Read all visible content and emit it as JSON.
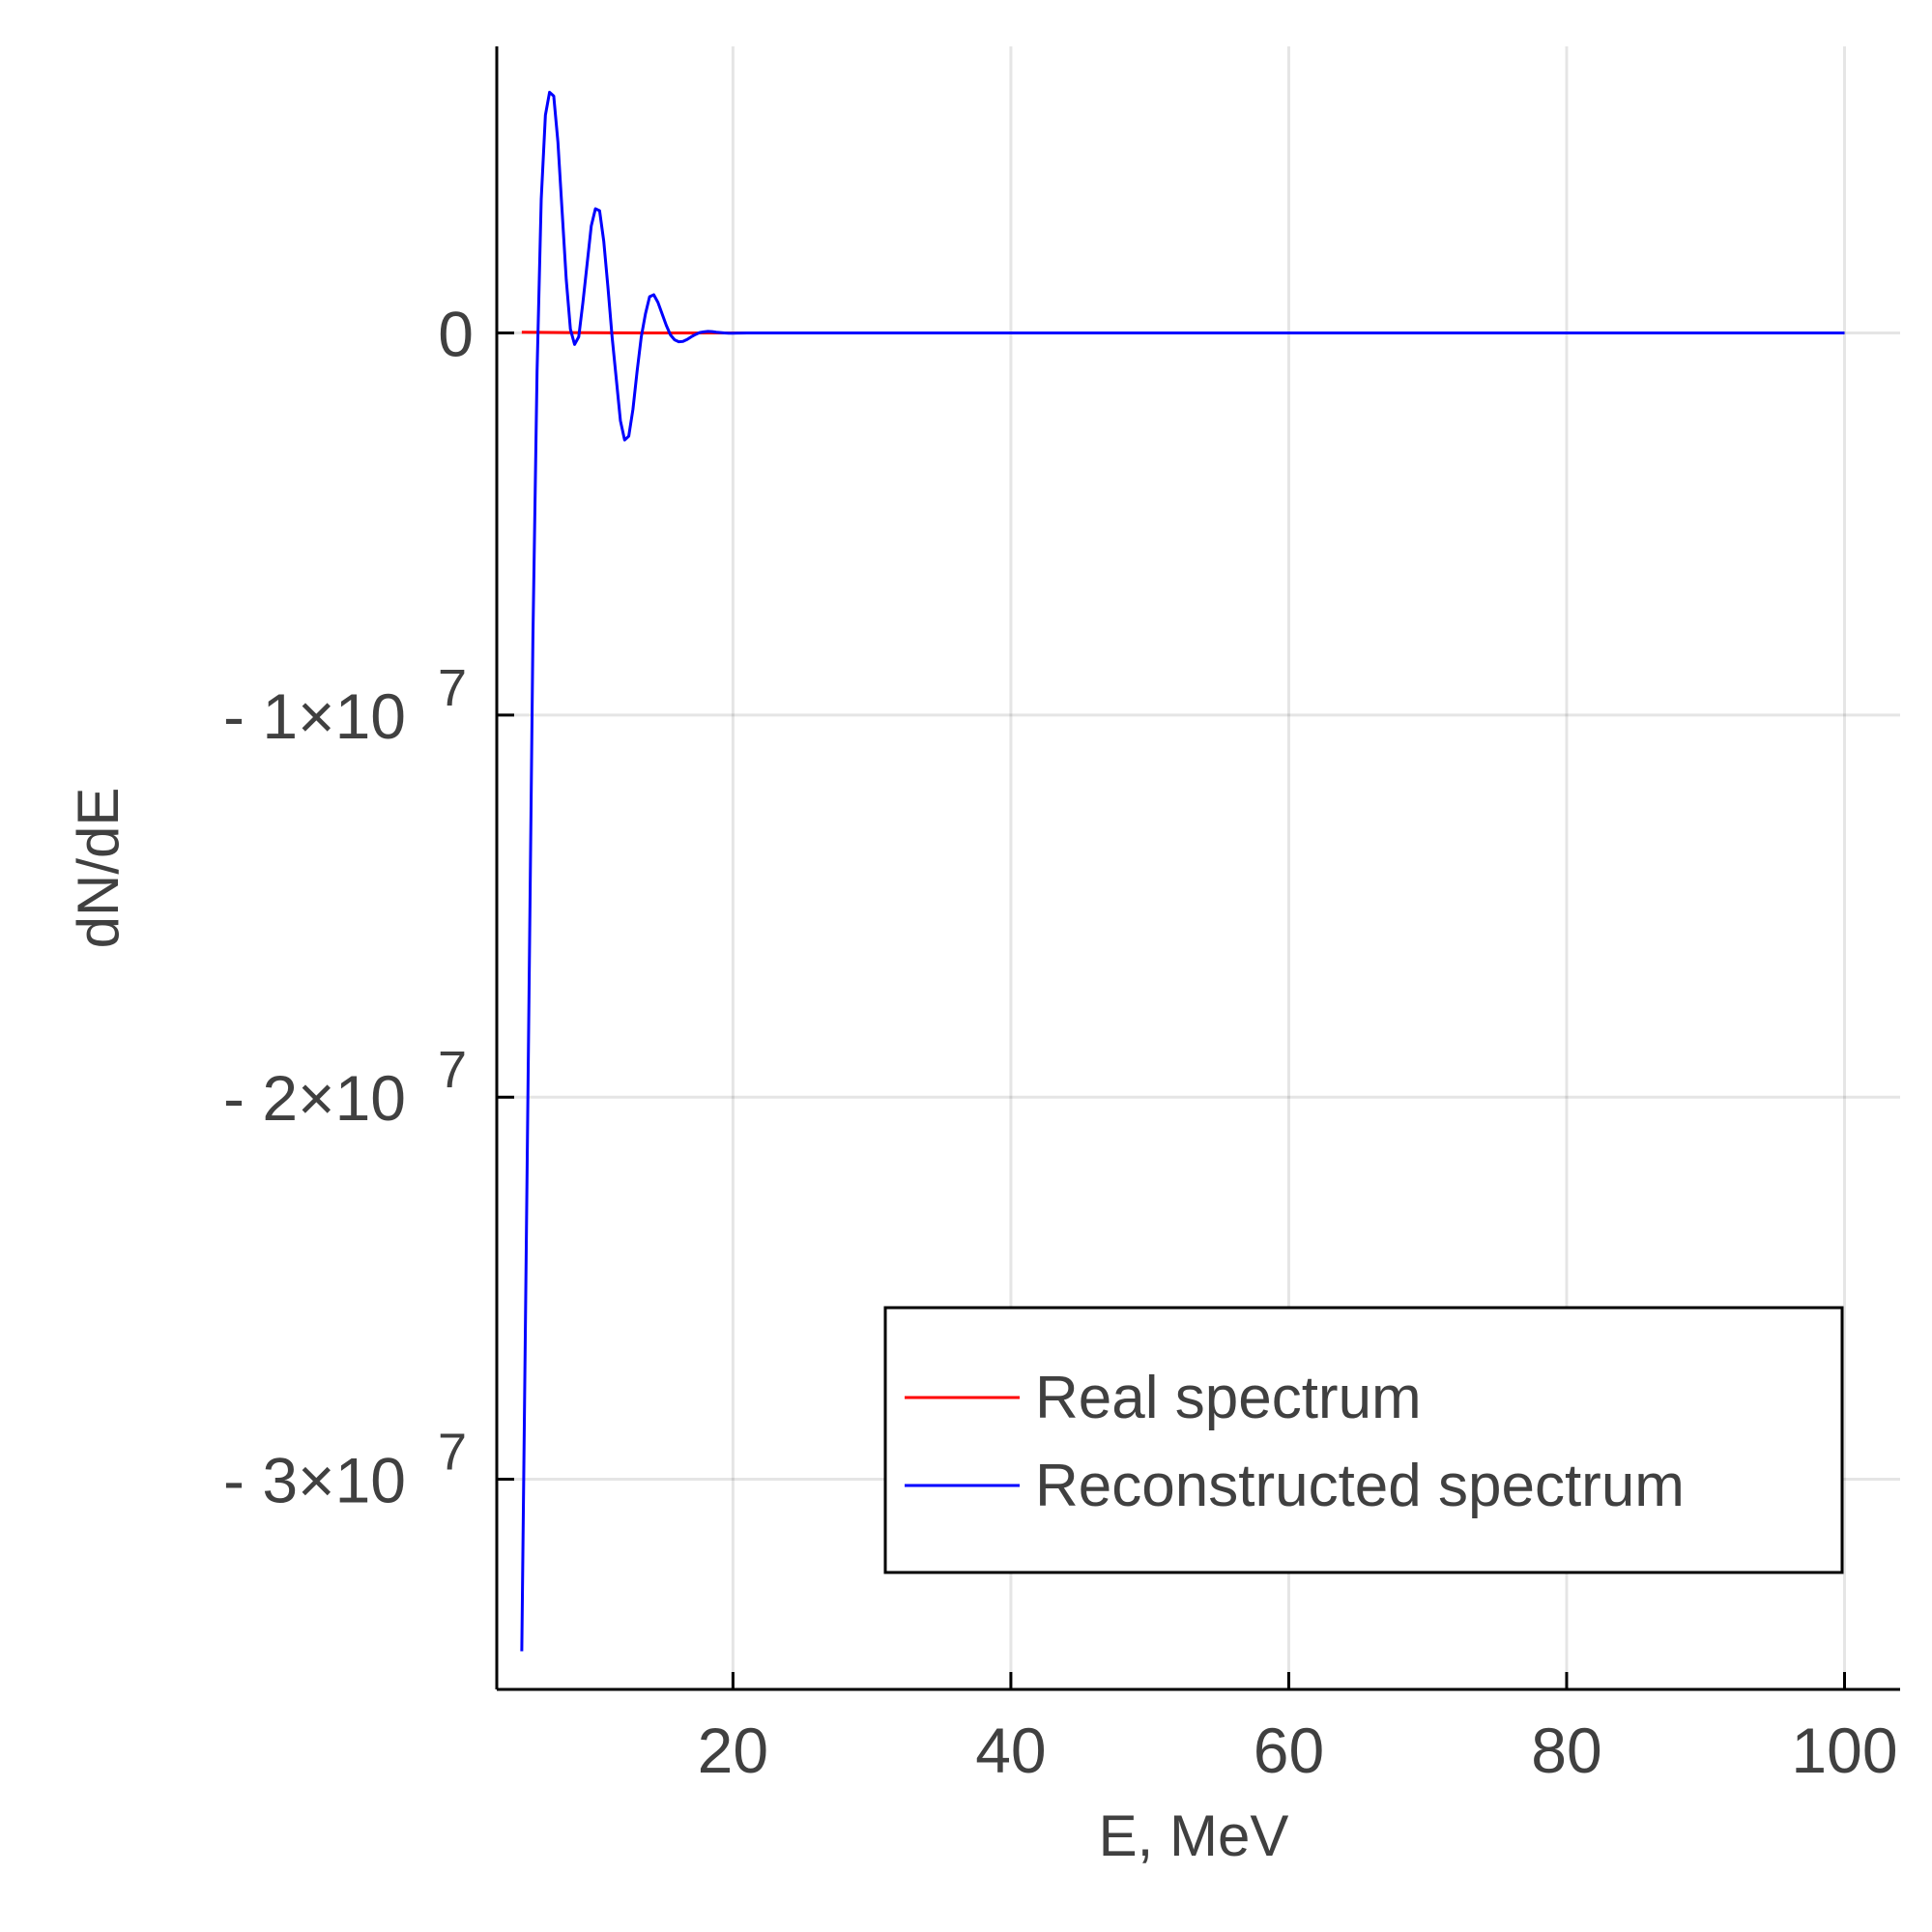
{
  "chart_data": {
    "type": "line",
    "xlabel": "E, MeV",
    "ylabel": "dN/dE",
    "xlim": [
      3,
      104
    ],
    "ylim": [
      -35500000,
      7500000
    ],
    "grid": true,
    "legend_position": "bottom-right",
    "x_ticks": [
      {
        "value": 20,
        "label": "20"
      },
      {
        "value": 40,
        "label": "40"
      },
      {
        "value": 60,
        "label": "60"
      },
      {
        "value": 80,
        "label": "80"
      },
      {
        "value": 100,
        "label": "100"
      }
    ],
    "y_ticks": [
      {
        "value": 0,
        "label": "0",
        "exponent": ""
      },
      {
        "value": -10000000,
        "label": "- 1×10",
        "exponent": "7"
      },
      {
        "value": -20000000,
        "label": "- 2×10",
        "exponent": "7"
      },
      {
        "value": -30000000,
        "label": "- 3×10",
        "exponent": "7"
      }
    ],
    "series": [
      {
        "name": "Real spectrum",
        "color": "#ff0000",
        "x": [
          4.8,
          6,
          8,
          10,
          12,
          14,
          16,
          18,
          20,
          22,
          24,
          30,
          40,
          60,
          80,
          100
        ],
        "y": [
          20000,
          15000,
          10000,
          6000,
          3000,
          1500,
          800,
          400,
          200,
          100,
          50,
          0,
          0,
          0,
          0,
          0
        ]
      },
      {
        "name": "Reconstructed spectrum",
        "color": "#0000ff",
        "x": [
          4.8,
          5.0,
          5.3,
          5.6,
          5.9,
          6.2,
          6.5,
          6.8,
          7.1,
          7.4,
          7.7,
          8.0,
          8.3,
          8.6,
          8.9,
          9.2,
          9.5,
          9.8,
          10.1,
          10.4,
          10.7,
          11.0,
          11.3,
          11.6,
          11.9,
          12.2,
          12.5,
          12.8,
          13.1,
          13.4,
          13.7,
          14.0,
          14.3,
          14.6,
          14.9,
          15.2,
          15.5,
          15.8,
          16.1,
          16.4,
          16.7,
          17.0,
          17.3,
          17.6,
          17.9,
          18.2,
          18.5,
          18.8,
          19.1,
          19.4,
          19.7,
          20.0,
          20.5,
          21.0,
          21.5,
          22.0,
          22.5,
          23.0,
          23.5,
          24.0,
          24.5,
          25.0,
          26.0,
          27.0,
          30.0,
          40.0,
          60.0,
          80.0,
          100.0
        ],
        "y": [
          -34500000,
          -28000000,
          -18000000,
          -8000000,
          -1000000,
          3500000,
          5700000,
          6300000,
          6200000,
          5000000,
          3200000,
          1400000,
          100000,
          -300000,
          -100000,
          800000,
          1800000,
          2800000,
          3250000,
          3200000,
          2400000,
          1200000,
          -100000,
          -1200000,
          -2300000,
          -2800000,
          -2700000,
          -2000000,
          -1000000,
          -100000,
          500000,
          950000,
          1000000,
          800000,
          500000,
          200000,
          -50000,
          -180000,
          -230000,
          -220000,
          -170000,
          -100000,
          -40000,
          10000,
          30000,
          40000,
          35000,
          20000,
          10000,
          0,
          -5000,
          -5000,
          -3000,
          0,
          0,
          0,
          0,
          0,
          0,
          0,
          0,
          0,
          0,
          0,
          0,
          0,
          0,
          0,
          0
        ]
      }
    ]
  }
}
